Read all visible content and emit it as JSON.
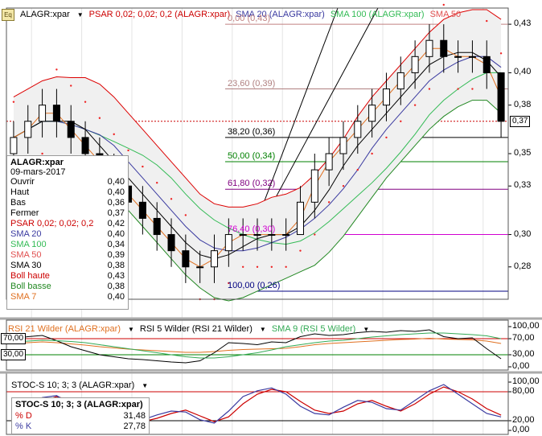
{
  "header": {
    "main": [
      {
        "text": "ALAGR:xpar",
        "color": "#000000"
      },
      {
        "text": "PSAR 0,02; 0,02; 0,2 (ALAGR:xpar)",
        "color": "#cc0000"
      },
      {
        "text": "SMA 20 (ALAGR:xpar)",
        "color": "#3a3aa0"
      },
      {
        "text": "SMA 100 (ALAGR:xpar)",
        "color": "#33bb55"
      },
      {
        "text": "SMA 50",
        "color": "#e05050"
      }
    ],
    "rsi": [
      {
        "text": "RSI 21 Wilder (ALAGR:xpar)",
        "color": "#e07020"
      },
      {
        "text": "RSI 5 Wilder (RSI 21 Wilder)",
        "color": "#000000"
      },
      {
        "text": "SMA 9 (RSI 5 Wilder)",
        "color": "#33aa55"
      }
    ],
    "stoc": [
      {
        "text": "STOC-S 10; 3; 3 (ALAGR:xpar)",
        "color": "#000000"
      }
    ],
    "eq_icon": "Eq"
  },
  "legend": {
    "title": "ALAGR:xpar",
    "date": "09-mars-2017",
    "rows": [
      {
        "label": "Ouvrir",
        "value": "0,40",
        "color": "#000000"
      },
      {
        "label": "Haut",
        "value": "0,40",
        "color": "#000000"
      },
      {
        "label": "Bas",
        "value": "0,36",
        "color": "#000000"
      },
      {
        "label": "Fermer",
        "value": "0,37",
        "color": "#000000"
      },
      {
        "label": "PSAR 0,02; 0,02; 0,2",
        "value": "0,42",
        "color": "#cc0000"
      },
      {
        "label": "SMA 20",
        "value": "0,40",
        "color": "#3a3aa0"
      },
      {
        "label": "SMA 100",
        "value": "0,34",
        "color": "#33bb55"
      },
      {
        "label": "SMA 50",
        "value": "0,39",
        "color": "#e05050"
      },
      {
        "label": "SMA 30",
        "value": "0,38",
        "color": "#000000"
      },
      {
        "label": "Boll haute",
        "value": "0,43",
        "color": "#cc0000"
      },
      {
        "label": "Boll basse",
        "value": "0,38",
        "color": "#228822"
      },
      {
        "label": "SMA 7",
        "value": "0,40",
        "color": "#e07020"
      }
    ]
  },
  "stoc_legend": {
    "title": "STOC-S 10; 3; 3 (ALAGR:xpar)",
    "rows": [
      {
        "label": "% D",
        "value": "31,48",
        "color": "#cc0000"
      },
      {
        "label": "% K",
        "value": "27,78",
        "color": "#3a3aa0"
      }
    ]
  },
  "axes": {
    "main_ticks": [
      "0,43",
      "0,40",
      "0,38",
      "0,35",
      "0,33",
      "0,30",
      "0,28"
    ],
    "last_price": "0,37",
    "rsi_ticks": [
      "100,00",
      "70,00",
      "30,00",
      "0,00"
    ],
    "rsi_left_tags": [
      "70,00",
      "30,00"
    ],
    "stoc_ticks": [
      "100,00",
      "80,00",
      "20,00",
      "0,00"
    ]
  },
  "fibonacci": [
    {
      "label": "0,00 (0,43)",
      "price": 0.43,
      "color": "#c08080"
    },
    {
      "label": "23,60 (0,39)",
      "price": 0.39,
      "color": "#b08080"
    },
    {
      "label": "38,20 (0,36)",
      "price": 0.36,
      "color": "#000000"
    },
    {
      "label": "50,00 (0,34)",
      "price": 0.345,
      "color": "#008000"
    },
    {
      "label": "61,80 (0,32)",
      "price": 0.328,
      "color": "#800080"
    },
    {
      "label": "76,40 (0,30)",
      "price": 0.3,
      "color": "#d000d0"
    },
    {
      "label": "100,00 (0,26)",
      "price": 0.265,
      "color": "#000080"
    }
  ],
  "chart_data": [
    {
      "type": "candlestick",
      "title": "ALAGR:xpar",
      "ylim": [
        0.26,
        0.44
      ],
      "ohlc": [
        [
          0.35,
          0.37,
          0.34,
          0.36
        ],
        [
          0.36,
          0.38,
          0.35,
          0.37
        ],
        [
          0.37,
          0.39,
          0.36,
          0.38
        ],
        [
          0.38,
          0.39,
          0.36,
          0.37
        ],
        [
          0.37,
          0.38,
          0.35,
          0.36
        ],
        [
          0.36,
          0.37,
          0.34,
          0.35
        ],
        [
          0.35,
          0.36,
          0.33,
          0.34
        ],
        [
          0.34,
          0.35,
          0.32,
          0.33
        ],
        [
          0.33,
          0.34,
          0.31,
          0.32
        ],
        [
          0.32,
          0.33,
          0.3,
          0.31
        ],
        [
          0.31,
          0.32,
          0.29,
          0.3
        ],
        [
          0.3,
          0.31,
          0.28,
          0.29
        ],
        [
          0.29,
          0.3,
          0.27,
          0.28
        ],
        [
          0.28,
          0.29,
          0.27,
          0.28
        ],
        [
          0.28,
          0.3,
          0.27,
          0.29
        ],
        [
          0.29,
          0.31,
          0.28,
          0.3
        ],
        [
          0.3,
          0.31,
          0.29,
          0.3
        ],
        [
          0.3,
          0.31,
          0.29,
          0.3
        ],
        [
          0.3,
          0.31,
          0.29,
          0.3
        ],
        [
          0.3,
          0.31,
          0.29,
          0.3
        ],
        [
          0.3,
          0.33,
          0.3,
          0.32
        ],
        [
          0.32,
          0.35,
          0.31,
          0.34
        ],
        [
          0.34,
          0.36,
          0.33,
          0.35
        ],
        [
          0.35,
          0.37,
          0.34,
          0.36
        ],
        [
          0.36,
          0.38,
          0.35,
          0.37
        ],
        [
          0.37,
          0.39,
          0.36,
          0.38
        ],
        [
          0.38,
          0.4,
          0.37,
          0.39
        ],
        [
          0.39,
          0.41,
          0.38,
          0.4
        ],
        [
          0.4,
          0.42,
          0.39,
          0.41
        ],
        [
          0.41,
          0.43,
          0.4,
          0.42
        ],
        [
          0.42,
          0.43,
          0.4,
          0.41
        ],
        [
          0.41,
          0.42,
          0.4,
          0.41
        ],
        [
          0.41,
          0.42,
          0.4,
          0.41
        ],
        [
          0.41,
          0.42,
          0.39,
          0.4
        ],
        [
          0.4,
          0.4,
          0.36,
          0.37
        ]
      ]
    },
    {
      "type": "line",
      "title": "RSI",
      "ylim": [
        0,
        100
      ],
      "series": [
        {
          "name": "RSI 21 Wilder",
          "color": "#e07020",
          "values": [
            58,
            60,
            62,
            60,
            57,
            54,
            50,
            47,
            44,
            42,
            40,
            38,
            36,
            36,
            38,
            41,
            43,
            44,
            45,
            46,
            50,
            55,
            58,
            60,
            62,
            64,
            66,
            68,
            69,
            71,
            69,
            68,
            67,
            64,
            58
          ]
        },
        {
          "name": "RSI 5 Wilder",
          "color": "#000000",
          "values": [
            70,
            75,
            78,
            65,
            50,
            40,
            30,
            25,
            20,
            18,
            15,
            12,
            10,
            15,
            35,
            60,
            58,
            55,
            62,
            60,
            75,
            82,
            78,
            80,
            85,
            88,
            86,
            90,
            88,
            92,
            75,
            70,
            72,
            45,
            20
          ]
        },
        {
          "name": "SMA 9",
          "color": "#33aa55",
          "values": [
            62,
            64,
            66,
            65,
            63,
            60,
            55,
            50,
            45,
            40,
            35,
            30,
            25,
            22,
            22,
            25,
            30,
            35,
            42,
            50,
            55,
            60,
            64,
            66,
            70,
            74,
            77,
            80,
            82,
            84,
            84,
            82,
            80,
            77,
            70
          ]
        }
      ]
    },
    {
      "type": "line",
      "title": "STOC-S 10; 3; 3",
      "ylim": [
        0,
        100
      ],
      "series": [
        {
          "name": "% D",
          "color": "#cc0000",
          "values": [
            30,
            45,
            60,
            70,
            62,
            45,
            30,
            20,
            15,
            18,
            25,
            35,
            42,
            30,
            18,
            28,
            55,
            75,
            85,
            80,
            60,
            42,
            35,
            40,
            55,
            62,
            50,
            40,
            55,
            75,
            90,
            80,
            65,
            45,
            31.48
          ]
        },
        {
          "name": "% K",
          "color": "#3a3aa0",
          "values": [
            25,
            50,
            68,
            72,
            55,
            35,
            22,
            12,
            12,
            22,
            32,
            40,
            38,
            22,
            15,
            40,
            70,
            82,
            88,
            75,
            50,
            35,
            32,
            48,
            62,
            58,
            45,
            42,
            62,
            82,
            95,
            75,
            55,
            35,
            27.78
          ]
        }
      ]
    }
  ]
}
